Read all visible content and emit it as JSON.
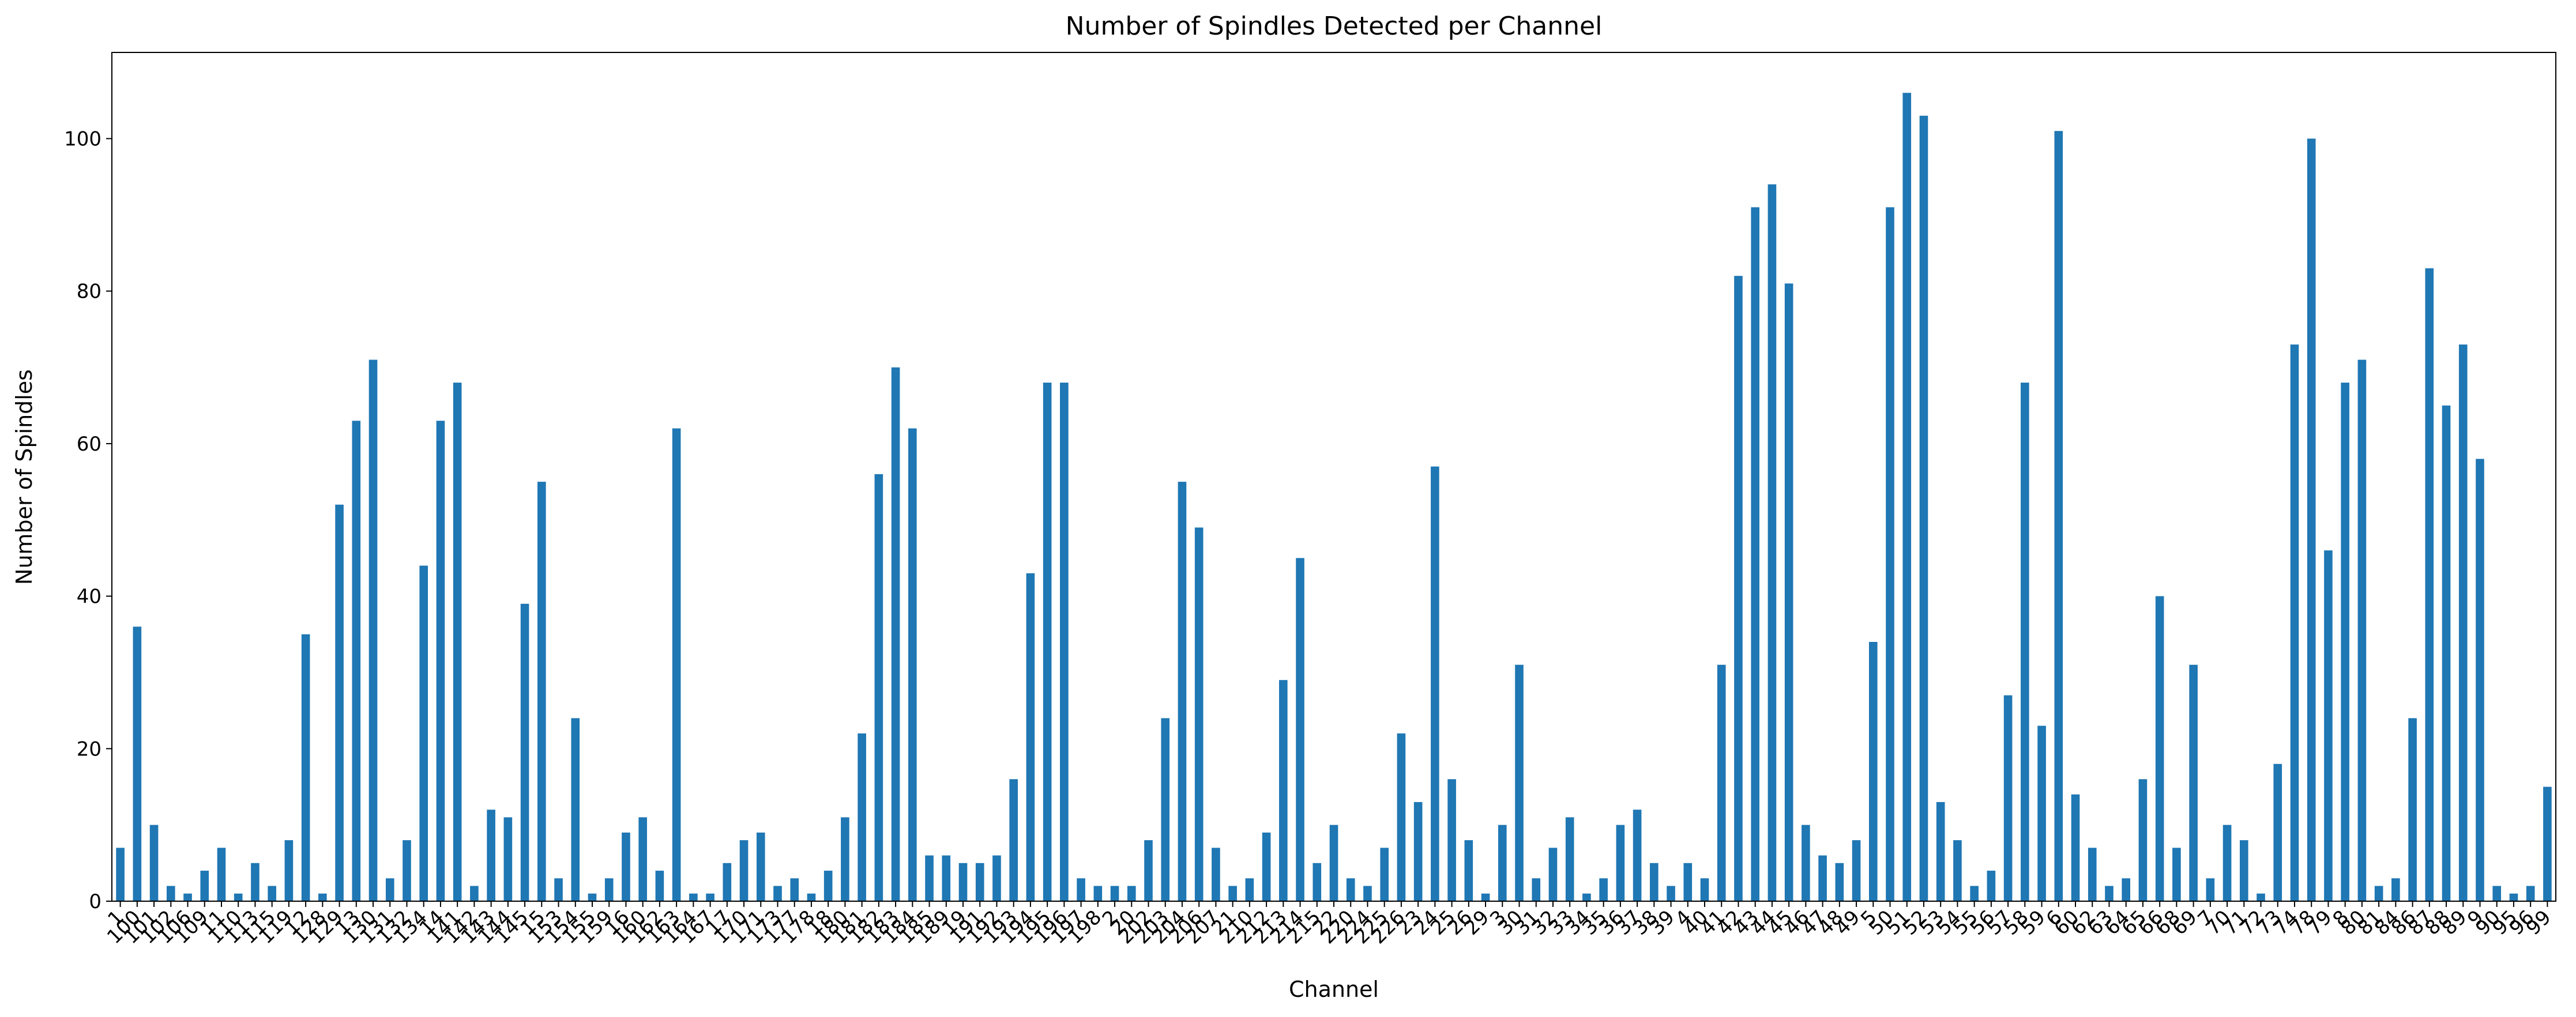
{
  "chart_data": {
    "type": "bar",
    "title": "Number of Spindles Detected per Channel",
    "x_label": "Channel",
    "y_label": "Number of Spindles",
    "color": "#1f77b4",
    "categories": [
      "1",
      "100",
      "101",
      "102",
      "106",
      "109",
      "11",
      "110",
      "113",
      "115",
      "119",
      "12",
      "128",
      "129",
      "13",
      "130",
      "131",
      "132",
      "134",
      "14",
      "141",
      "142",
      "143",
      "144",
      "145",
      "15",
      "153",
      "154",
      "155",
      "159",
      "16",
      "160",
      "162",
      "163",
      "164",
      "167",
      "17",
      "170",
      "171",
      "173",
      "177",
      "178",
      "18",
      "180",
      "181",
      "182",
      "183",
      "184",
      "185",
      "189",
      "19",
      "191",
      "192",
      "193",
      "194",
      "195",
      "196",
      "197",
      "198",
      "2",
      "20",
      "202",
      "203",
      "204",
      "206",
      "207",
      "21",
      "210",
      "212",
      "213",
      "214",
      "215",
      "22",
      "220",
      "224",
      "225",
      "226",
      "23",
      "24",
      "25",
      "26",
      "29",
      "3",
      "30",
      "31",
      "32",
      "33",
      "34",
      "35",
      "36",
      "37",
      "38",
      "39",
      "4",
      "40",
      "41",
      "42",
      "43",
      "44",
      "45",
      "46",
      "47",
      "48",
      "49",
      "5",
      "50",
      "51",
      "52",
      "53",
      "54",
      "55",
      "56",
      "57",
      "58",
      "59",
      "6",
      "60",
      "62",
      "63",
      "64",
      "65",
      "66",
      "68",
      "69",
      "7",
      "70",
      "71",
      "72",
      "73",
      "74",
      "78",
      "79",
      "8",
      "80",
      "81",
      "84",
      "86",
      "87",
      "88",
      "89",
      "9",
      "90",
      "95",
      "96",
      "99"
    ],
    "values": [
      7,
      36,
      10,
      2,
      1,
      4,
      7,
      1,
      5,
      2,
      8,
      35,
      1,
      52,
      63,
      71,
      3,
      8,
      44,
      63,
      68,
      2,
      12,
      11,
      39,
      55,
      3,
      24,
      1,
      3,
      9,
      11,
      4,
      62,
      1,
      1,
      5,
      8,
      9,
      2,
      3,
      1,
      4,
      11,
      22,
      56,
      70,
      62,
      6,
      6,
      5,
      5,
      6,
      16,
      43,
      68,
      68,
      3,
      2,
      2,
      2,
      8,
      24,
      55,
      49,
      7,
      2,
      3,
      9,
      29,
      45,
      5,
      10,
      3,
      2,
      7,
      22,
      13,
      57,
      16,
      8,
      1,
      10,
      31,
      3,
      7,
      11,
      1,
      3,
      10,
      12,
      5,
      2,
      5,
      3,
      31,
      82,
      91,
      94,
      81,
      10,
      6,
      5,
      8,
      34,
      91,
      106,
      103,
      13,
      8,
      2,
      4,
      27,
      68,
      23,
      101,
      14,
      7,
      2,
      3,
      16,
      40,
      7,
      31,
      3,
      10,
      8,
      1,
      18,
      73,
      100,
      46,
      68,
      71,
      2,
      3,
      24,
      83,
      65,
      73,
      58,
      2,
      1,
      2,
      15
    ],
    "ylim": [
      0,
      111.3
    ],
    "yticks": [
      0,
      20,
      40,
      60,
      80,
      100
    ],
    "grid": false
  }
}
